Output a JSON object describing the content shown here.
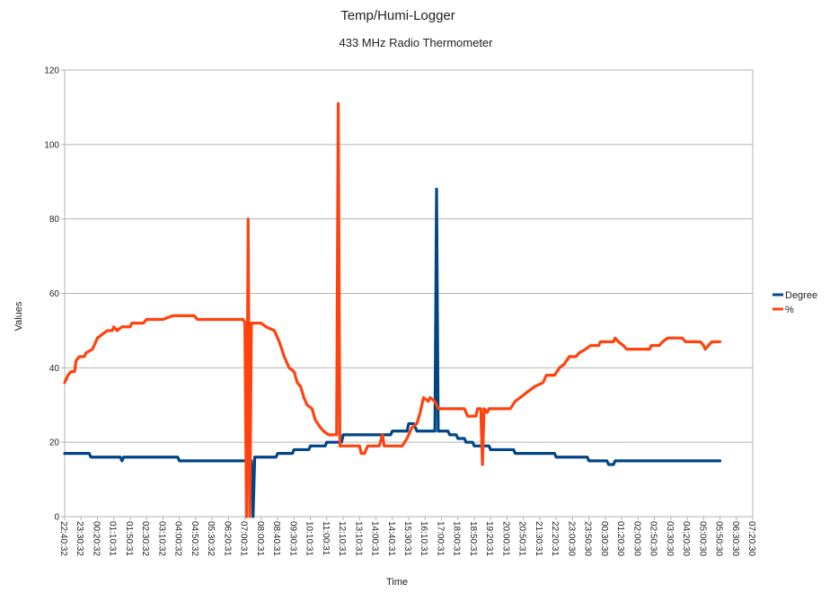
{
  "chart_data": {
    "type": "line",
    "title": "Temp/Humi-Logger",
    "subtitle": "433 MHz Radio Thermometer",
    "xlabel": "Time",
    "ylabel": "Values",
    "ylim": [
      0,
      120
    ],
    "yticks": [
      0,
      20,
      40,
      60,
      80,
      100,
      120
    ],
    "grid": true,
    "legend_position": "right",
    "x_tick_labels": [
      "22:40:32",
      "23:30:32",
      "00:20:32",
      "01:10:31",
      "01:50:31",
      "02:30:32",
      "03:10:32",
      "04:00:32",
      "04:50:32",
      "05:30:32",
      "06:20:31",
      "07:00:31",
      "08:00:31",
      "08:40:31",
      "09:30:31",
      "10:10:31",
      "11:00:31",
      "12:10:31",
      "13:10:31",
      "14:00:31",
      "14:40:31",
      "15:30:31",
      "16:10:31",
      "17:00:31",
      "18:00:31",
      "18:50:31",
      "19:20:31",
      "20:00:31",
      "20:50:31",
      "21:30:31",
      "22:20:31",
      "23:00:30",
      "23:50:30",
      "00:30:30",
      "01:20:30",
      "02:00:30",
      "02:50:30",
      "03:30:30",
      "04:20:30",
      "05:00:30",
      "05:50:30",
      "06:30:30",
      "07:20:30"
    ],
    "series": [
      {
        "name": "Degree",
        "color": "#004586",
        "points": [
          [
            0,
            17
          ],
          [
            1.5,
            17
          ],
          [
            1.6,
            16
          ],
          [
            3.4,
            16
          ],
          [
            3.5,
            15
          ],
          [
            3.6,
            16
          ],
          [
            6.9,
            16
          ],
          [
            7,
            15
          ],
          [
            11.4,
            15
          ],
          [
            11.5,
            0
          ],
          [
            11.6,
            16
          ],
          [
            12.9,
            16
          ],
          [
            13,
            17
          ],
          [
            13.9,
            17
          ],
          [
            14,
            18
          ],
          [
            14.9,
            18
          ],
          [
            15,
            19
          ],
          [
            15.9,
            19
          ],
          [
            16,
            20
          ],
          [
            16.9,
            20
          ],
          [
            17,
            22
          ],
          [
            19.9,
            22
          ],
          [
            20,
            23
          ],
          [
            20.9,
            23
          ],
          [
            21,
            25
          ],
          [
            21.3,
            25
          ],
          [
            21.5,
            23
          ],
          [
            22.6,
            23
          ],
          [
            22.7,
            88
          ],
          [
            22.8,
            23
          ],
          [
            23.4,
            23
          ],
          [
            23.5,
            22
          ],
          [
            23.9,
            22
          ],
          [
            24,
            21
          ],
          [
            24.4,
            21
          ],
          [
            24.5,
            20
          ],
          [
            24.9,
            20
          ],
          [
            25,
            19
          ],
          [
            25.9,
            19
          ],
          [
            26,
            18
          ],
          [
            27.4,
            18
          ],
          [
            27.5,
            17
          ],
          [
            29.9,
            17
          ],
          [
            30,
            16
          ],
          [
            31.9,
            16
          ],
          [
            32,
            15
          ],
          [
            33.1,
            15
          ],
          [
            33.2,
            14
          ],
          [
            33.5,
            14
          ],
          [
            33.6,
            15
          ],
          [
            40,
            15
          ]
        ]
      },
      {
        "name": "%",
        "color": "#ff420e",
        "points": [
          [
            0,
            36
          ],
          [
            0.2,
            38
          ],
          [
            0.4,
            39
          ],
          [
            0.6,
            39
          ],
          [
            0.7,
            42
          ],
          [
            0.9,
            43
          ],
          [
            1.2,
            43
          ],
          [
            1.3,
            44
          ],
          [
            1.7,
            45
          ],
          [
            2,
            48
          ],
          [
            2.3,
            49
          ],
          [
            2.6,
            50
          ],
          [
            2.9,
            50
          ],
          [
            3,
            51
          ],
          [
            3.2,
            50
          ],
          [
            3.5,
            51
          ],
          [
            4,
            51
          ],
          [
            4.1,
            52
          ],
          [
            4.8,
            52
          ],
          [
            5,
            53
          ],
          [
            6,
            53
          ],
          [
            6.6,
            54
          ],
          [
            7.9,
            54
          ],
          [
            8.1,
            53
          ],
          [
            10.9,
            53
          ],
          [
            11,
            52
          ],
          [
            11.1,
            0
          ],
          [
            11.2,
            80
          ],
          [
            11.3,
            0
          ],
          [
            11.4,
            52
          ],
          [
            11.5,
            52
          ],
          [
            12,
            52
          ],
          [
            12.3,
            51
          ],
          [
            12.8,
            50
          ],
          [
            13.1,
            47
          ],
          [
            13.4,
            43
          ],
          [
            13.7,
            40
          ],
          [
            14,
            39
          ],
          [
            14.2,
            36
          ],
          [
            14.4,
            35
          ],
          [
            14.6,
            32
          ],
          [
            14.8,
            30
          ],
          [
            15.1,
            29
          ],
          [
            15.3,
            26
          ],
          [
            15.6,
            24
          ],
          [
            15.8,
            23
          ],
          [
            16.1,
            22
          ],
          [
            16.6,
            22
          ],
          [
            16.7,
            111
          ],
          [
            16.8,
            19
          ],
          [
            18,
            19
          ],
          [
            18.1,
            17
          ],
          [
            18.3,
            17
          ],
          [
            18.5,
            19
          ],
          [
            19.2,
            19
          ],
          [
            19.4,
            22
          ],
          [
            19.5,
            19
          ],
          [
            20.6,
            19
          ],
          [
            20.9,
            21
          ],
          [
            21.2,
            24
          ],
          [
            21.5,
            25
          ],
          [
            21.7,
            28
          ],
          [
            21.9,
            32
          ],
          [
            22.2,
            31
          ],
          [
            22.3,
            32
          ],
          [
            22.6,
            31
          ],
          [
            22.8,
            29
          ],
          [
            24.4,
            29
          ],
          [
            24.6,
            27
          ],
          [
            25.1,
            27
          ],
          [
            25.2,
            29
          ],
          [
            25.4,
            29
          ],
          [
            25.5,
            14
          ],
          [
            25.6,
            29
          ],
          [
            25.8,
            28
          ],
          [
            25.9,
            29
          ],
          [
            27.2,
            29
          ],
          [
            27.5,
            31
          ],
          [
            27.8,
            32
          ],
          [
            28.1,
            33
          ],
          [
            28.4,
            34
          ],
          [
            28.7,
            35
          ],
          [
            29.2,
            36
          ],
          [
            29.4,
            38
          ],
          [
            29.9,
            38
          ],
          [
            30.2,
            40
          ],
          [
            30.5,
            41
          ],
          [
            30.8,
            43
          ],
          [
            31.2,
            43
          ],
          [
            31.4,
            44
          ],
          [
            31.8,
            45
          ],
          [
            32.1,
            46
          ],
          [
            32.6,
            46
          ],
          [
            32.7,
            47
          ],
          [
            33.5,
            47
          ],
          [
            33.6,
            48
          ],
          [
            33.8,
            47
          ],
          [
            34.1,
            46
          ],
          [
            34.3,
            45
          ],
          [
            35.7,
            45
          ],
          [
            35.8,
            46
          ],
          [
            36.3,
            46
          ],
          [
            36.5,
            47
          ],
          [
            36.8,
            48
          ],
          [
            37.7,
            48
          ],
          [
            37.9,
            47
          ],
          [
            38.8,
            47
          ],
          [
            39,
            46
          ],
          [
            39.1,
            45
          ],
          [
            39.3,
            46
          ],
          [
            39.5,
            47
          ],
          [
            40,
            47
          ]
        ]
      }
    ]
  }
}
